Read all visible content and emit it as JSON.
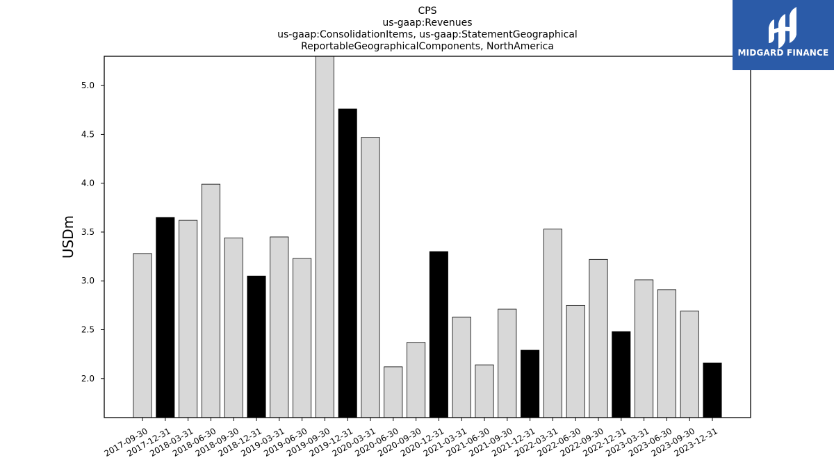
{
  "chart_data": {
    "type": "bar",
    "title_lines": [
      "CPS",
      "us-gaap:Revenues",
      "us-gaap:ConsolidationItems, us-gaap:StatementGeographical",
      "ReportableGeographicalComponents, NorthAmerica"
    ],
    "ylabel": "USDm",
    "xlabel": "",
    "ylim": [
      1.6,
      5.3
    ],
    "yticks": [
      "2.0",
      "2.5",
      "3.0",
      "3.5",
      "4.0",
      "4.5",
      "5.0"
    ],
    "categories": [
      "2017-09-30",
      "2017-12-31",
      "2018-03-31",
      "2018-06-30",
      "2018-09-30",
      "2018-12-31",
      "2019-03-31",
      "2019-06-30",
      "2019-09-30",
      "2019-12-31",
      "2020-03-31",
      "2020-06-30",
      "2020-09-30",
      "2020-12-31",
      "2021-03-31",
      "2021-06-30",
      "2021-09-30",
      "2021-12-31",
      "2022-03-31",
      "2022-06-30",
      "2022-09-30",
      "2022-12-31",
      "2023-03-31",
      "2023-06-30",
      "2023-09-30",
      "2023-12-31"
    ],
    "values": [
      3.28,
      3.65,
      3.62,
      3.99,
      3.44,
      3.05,
      3.45,
      3.23,
      5.35,
      4.76,
      4.47,
      2.12,
      2.37,
      3.3,
      2.63,
      2.14,
      2.71,
      2.29,
      3.53,
      2.75,
      3.22,
      2.48,
      3.01,
      2.91,
      2.69,
      2.16
    ],
    "highlight": [
      false,
      true,
      false,
      false,
      false,
      true,
      false,
      false,
      false,
      true,
      false,
      false,
      false,
      true,
      false,
      false,
      false,
      true,
      false,
      false,
      false,
      true,
      false,
      false,
      false,
      true
    ],
    "colors": {
      "normal": "#d8d8d8",
      "highlight": "#000000",
      "edge": "#000000"
    },
    "grid": false,
    "legend": "none"
  },
  "logo": {
    "text": "MIDGARD FINANCE",
    "background": "#2b5ba8"
  }
}
